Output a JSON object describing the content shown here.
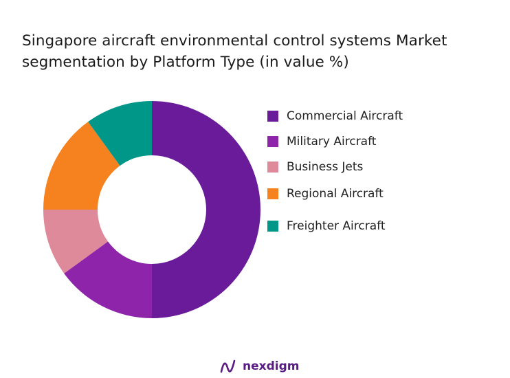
{
  "title_line1": "Singapore aircraft environmental control systems Market",
  "title_line2": "segmentation by Platform Type (in value %)",
  "brand": "nexdigm",
  "chart_data": {
    "type": "pie",
    "donut": true,
    "title": "Singapore aircraft environmental control systems Market segmentation by Platform Type (in value %)",
    "categories": [
      "Commercial Aircraft",
      "Military Aircraft",
      "Business Jets",
      "Regional Aircraft",
      "Freighter Aircraft"
    ],
    "values": [
      50,
      15,
      10,
      15,
      10
    ],
    "colors": [
      "#6a1b9a",
      "#8e24aa",
      "#de8a9b",
      "#f5821f",
      "#009688"
    ],
    "legend_position": "right"
  }
}
